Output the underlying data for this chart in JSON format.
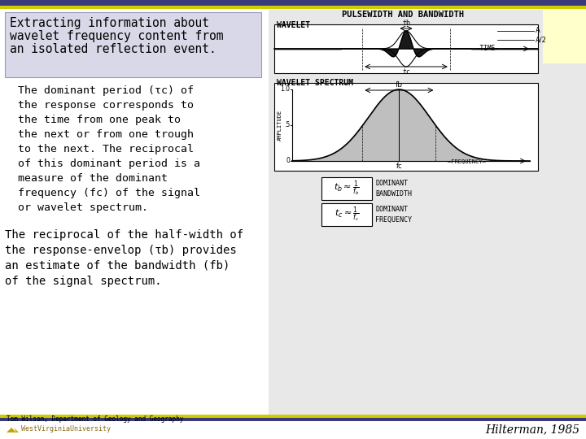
{
  "bg_color": "#ffffff",
  "title_box_bg": "#d8d8e8",
  "title_box_border": "#9999bb",
  "top_bar_blue": "#3a3a7a",
  "top_bar_yellow": "#cccc00",
  "bottom_bar_blue": "#3a3a7a",
  "bottom_bar_yellow": "#cccc00",
  "right_panel_bg": "#e8e8e8",
  "yellow_corner_bg": "#ffffcc",
  "title_lines": [
    "Extracting information about",
    "wavelet frequency content from",
    "an isolated reflection event."
  ],
  "para1_lines": [
    "The dominant period (τc) of",
    "the response corresponds to",
    "the time from one peak to",
    "the next or from one trough",
    "to the next. The reciprocal",
    "of this dominant period is a",
    "measure of the dominant",
    "frequency (fc) of the signal",
    "or wavelet spectrum."
  ],
  "para2_lines": [
    "The reciprocal of the half-width of",
    "the response-envelop (τb) provides",
    "an estimate of the bandwidth (fb)",
    "of the signal spectrum."
  ],
  "footer_left": "Tom Wilson, Department of Geology and Geography",
  "footer_wvu": "WestVirginiaUniversity",
  "footer_right": "Hilterman, 1985",
  "wavelet_label": "WAVELET",
  "spectrum_label": "WAVELET SPECTRUM",
  "top_title": "PULSEWIDTH AND BANDWIDTH",
  "dominant_bw_label1": "DOMINANT",
  "dominant_bw_label2": "BANDWIDTH",
  "dominant_freq_label1": "DOMINANT",
  "dominant_freq_label2": "FREQUENCY"
}
